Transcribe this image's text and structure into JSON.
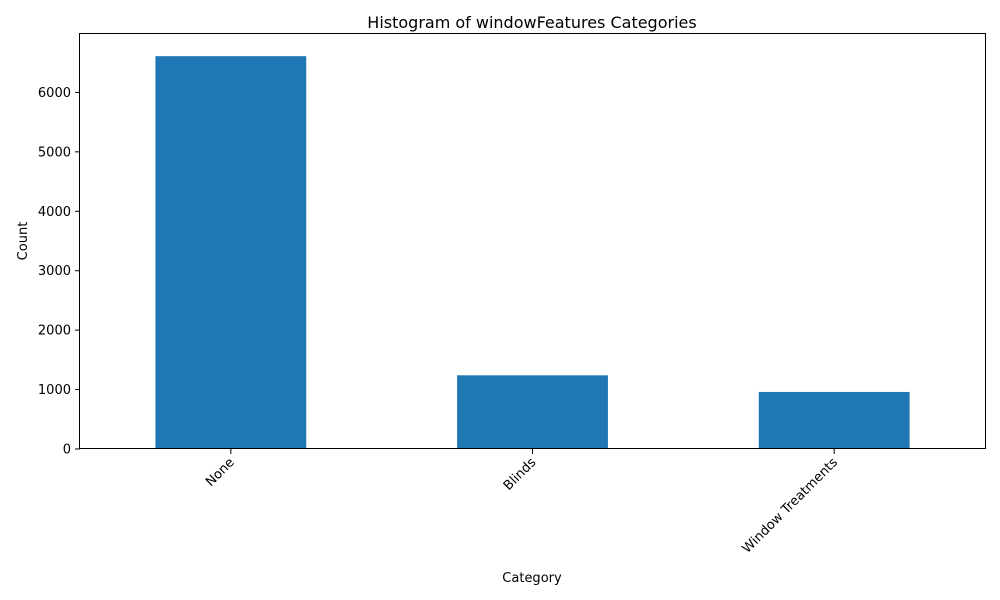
{
  "chart_data": {
    "type": "bar",
    "title": "Histogram of windowFeatures Categories",
    "xlabel": "Category",
    "ylabel": "Count",
    "categories": [
      "None",
      "Blinds",
      "Window Treatments"
    ],
    "values": [
      6610,
      1240,
      960
    ],
    "ylim": [
      0,
      7000
    ],
    "yticks": [
      0,
      1000,
      2000,
      3000,
      4000,
      5000,
      6000
    ],
    "grid": false,
    "legend": "none",
    "bar_color": "#1f77b4"
  }
}
